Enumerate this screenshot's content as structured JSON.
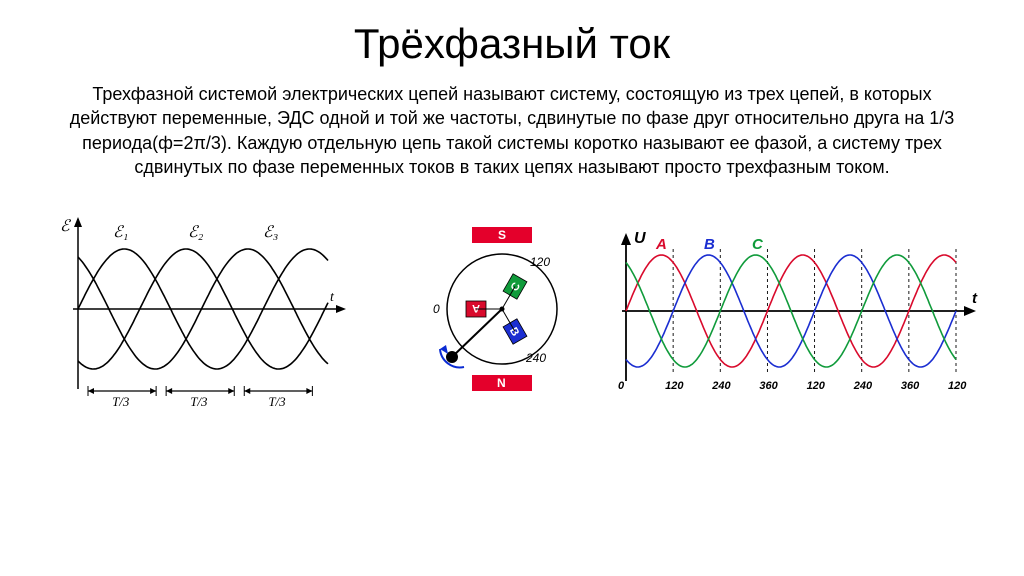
{
  "title": "Трёхфазный ток",
  "description": "Трехфазной системой электрических цепей называют систему, состоящую из трех цепей, в которых действуют переменные, ЭДС одной и той же частоты, сдвинутые по фазе друг относительно друга на 1/3 периода(ф=2π/3). Каждую отдельную цепь такой системы коротко называют ее фазой, а систему трех сдвинутых по фазе переменных токов в таких цепях называют просто трехфазным током.",
  "left_chart": {
    "type": "line",
    "y_label": "ℰ",
    "x_label": "t",
    "series_labels": [
      "ℰ₁",
      "ℰ₂",
      "ℰ₃"
    ],
    "x_ticks": [
      "T/3",
      "T/3",
      "T/3"
    ],
    "line_color": "#000000",
    "line_width": 1.6,
    "amplitude": 1.0,
    "phase_shift_deg": 120
  },
  "rotor": {
    "outer_stroke": "#000000",
    "S_label": "S",
    "N_label": "N",
    "S_color": "#e4002b",
    "N_color": "#e4002b",
    "phase_A": {
      "label": "A",
      "color": "#d90a2c",
      "angle_deg": 0,
      "text": "0"
    },
    "phase_B": {
      "label": "B",
      "color": "#1b2ed1",
      "angle_deg": 240,
      "text": "240"
    },
    "phase_C": {
      "label": "C",
      "color": "#109b3b",
      "angle_deg": 120,
      "text": "120"
    },
    "arrow_color": "#0a2bd3"
  },
  "color_chart": {
    "type": "line",
    "y_label": "U",
    "x_label": "t",
    "series": [
      {
        "label": "A",
        "color": "#d90a2c",
        "phase_deg": 0
      },
      {
        "label": "B",
        "color": "#1b2ed1",
        "phase_deg": 120
      },
      {
        "label": "C",
        "color": "#109b3b",
        "phase_deg": 240
      }
    ],
    "x_ticks": [
      "0",
      "120",
      "240",
      "360",
      "120",
      "240",
      "360",
      "120"
    ],
    "grid_dash": "3,3",
    "grid_color": "#000000",
    "axis_color": "#000000",
    "background": "#ffffff",
    "line_width": 1.6,
    "amplitude": 1.0,
    "label_fontsize": 12
  }
}
